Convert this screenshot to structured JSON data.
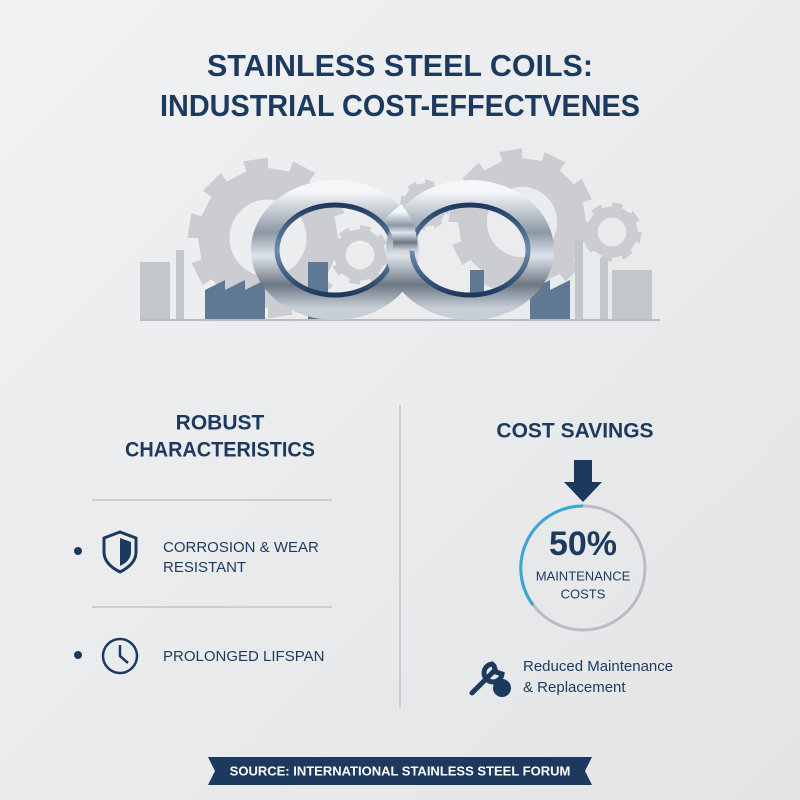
{
  "header": {
    "title_lines": [
      "STAINLESS STEEL COILS:",
      "INDUSTRIAL COST-EFFECTVENES"
    ]
  },
  "left_panel": {
    "heading_lines": [
      "ROBUST",
      "CHARACTERISTICS"
    ],
    "items": [
      {
        "label_lines": [
          "CORROSION & WEAR",
          "RESISTANT"
        ]
      },
      {
        "label_lines": [
          "PROLONGED LIFSPAN"
        ]
      }
    ]
  },
  "right_panel": {
    "heading": "COST SAVINGS",
    "gauge": {
      "value": "50%",
      "label_lines": [
        "MAINTENANCE",
        "COSTS"
      ]
    },
    "note_lines": [
      "Reduced Maintenance",
      "& Replacement"
    ]
  },
  "footer": {
    "source": "SOURCE: INTERNATIONAL STAINLESS STEEL FORUM"
  }
}
